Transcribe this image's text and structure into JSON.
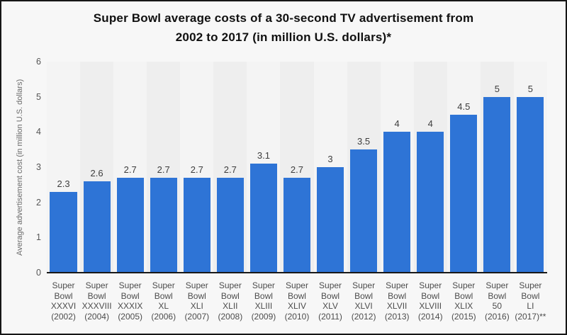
{
  "title": {
    "line1": "Super Bowl average costs of a 30-second TV advertisement from",
    "line2": "2002 to 2017 (in million U.S. dollars)*"
  },
  "chart_data": {
    "type": "bar",
    "title": "Super Bowl average costs of a 30-second TV advertisement from 2002 to 2017 (in million U.S. dollars)*",
    "categories": [
      "Super Bowl XXXVI (2002)",
      "Super Bowl XXXVIII (2004)",
      "Super Bowl XXXIX (2005)",
      "Super Bowl XL (2006)",
      "Super Bowl XLI (2007)",
      "Super Bowl XLII (2008)",
      "Super Bowl XLIII (2009)",
      "Super Bowl XLIV (2010)",
      "Super Bowl XLV (2011)",
      "Super Bowl XLVI (2012)",
      "Super Bowl XLVII (2013)",
      "Super Bowl XLVIII (2014)",
      "Super Bowl XLIX (2015)",
      "Super Bowl 50 (2016)",
      "Super Bowl LI (2017)**"
    ],
    "category_label_lines": [
      [
        "Super",
        "Bowl",
        "XXXVI",
        "(2002)"
      ],
      [
        "Super",
        "Bowl",
        "XXXVIII",
        "(2004)"
      ],
      [
        "Super",
        "Bowl",
        "XXXIX",
        "(2005)"
      ],
      [
        "Super",
        "Bowl",
        "XL",
        "(2006)"
      ],
      [
        "Super",
        "Bowl",
        "XLI",
        "(2007)"
      ],
      [
        "Super",
        "Bowl",
        "XLII",
        "(2008)"
      ],
      [
        "Super",
        "Bowl",
        "XLIII",
        "(2009)"
      ],
      [
        "Super",
        "Bowl",
        "XLIV",
        "(2010)"
      ],
      [
        "Super",
        "Bowl",
        "XLV",
        "(2011)"
      ],
      [
        "Super",
        "Bowl",
        "XLVI",
        "(2012)"
      ],
      [
        "Super",
        "Bowl",
        "XLVII",
        "(2013)"
      ],
      [
        "Super",
        "Bowl",
        "XLVIII",
        "(2014)"
      ],
      [
        "Super",
        "Bowl",
        "XLIX",
        "(2015)"
      ],
      [
        "Super",
        "Bowl",
        "50",
        "(2016)"
      ],
      [
        "Super",
        "Bowl",
        "LI",
        "(2017)**"
      ]
    ],
    "values": [
      2.3,
      2.6,
      2.7,
      2.7,
      2.7,
      2.7,
      3.1,
      2.7,
      3,
      3.5,
      4,
      4,
      4.5,
      5,
      5
    ],
    "value_labels": [
      "2.3",
      "2.6",
      "2.7",
      "2.7",
      "2.7",
      "2.7",
      "3.1",
      "2.7",
      "3",
      "3.5",
      "4",
      "4",
      "4.5",
      "5",
      "5"
    ],
    "xlabel": "",
    "ylabel": "Average advertisement cost (in million U.S. dollars)",
    "ylim": [
      0,
      6
    ],
    "yticks": [
      0,
      1,
      2,
      3,
      4,
      5,
      6
    ],
    "grid": "horizontal-dashed",
    "legend": "none",
    "bar_color": "#2e74d6",
    "baseline_color": "#191919",
    "plot_band_colors": [
      "#f4f4f4",
      "#eeeeee"
    ]
  }
}
